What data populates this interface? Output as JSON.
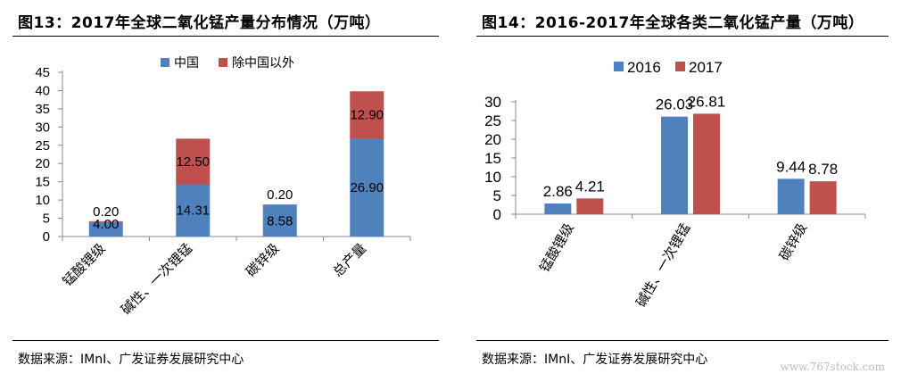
{
  "left": {
    "title": "图13：2017年全球二氧化锰产量分布情况（万吨）",
    "source": "数据来源：IMnI、广发证券发展研究中心"
  },
  "right": {
    "title": "图14：2016-2017年全球各类二氧化锰产量（万吨）",
    "source": "数据来源：IMnI、广发证券发展研究中心"
  },
  "watermark": "www.767stock.com",
  "chart_data": [
    {
      "type": "bar",
      "stacked": true,
      "title": "2017年全球二氧化锰产量分布情况（万吨）",
      "categories": [
        "锰酸锂级",
        "碱性、一次锂锰",
        "碳锌级",
        "总产量"
      ],
      "series": [
        {
          "name": "中国",
          "color": "#4f81bd",
          "values": [
            4.0,
            14.31,
            8.58,
            26.9
          ],
          "labels": [
            "4.00",
            "14.31",
            "8.58",
            "26.90"
          ]
        },
        {
          "name": "除中国以外",
          "color": "#c0504d",
          "values": [
            0.2,
            12.5,
            0.2,
            12.9
          ],
          "labels": [
            "0.20",
            "12.50",
            "0.20",
            "12.90"
          ]
        }
      ],
      "ylim": [
        0,
        45
      ],
      "yticks": [
        0,
        5,
        10,
        15,
        20,
        25,
        30,
        35,
        40,
        45
      ],
      "grid": false,
      "legend": "top"
    },
    {
      "type": "bar",
      "stacked": false,
      "title": "2016-2017年全球各类二氧化锰产量（万吨）",
      "categories": [
        "锰酸锂级",
        "碱性、一次锂锰",
        "碳锌级"
      ],
      "series": [
        {
          "name": "2016",
          "color": "#4f81bd",
          "values": [
            2.86,
            26.03,
            9.44
          ],
          "labels": [
            "2.86",
            "26.03",
            "9.44"
          ]
        },
        {
          "name": "2017",
          "color": "#c0504d",
          "values": [
            4.21,
            26.81,
            8.78
          ],
          "labels": [
            "4.21",
            "26.81",
            "8.78"
          ]
        }
      ],
      "ylim": [
        0,
        30
      ],
      "yticks": [
        0,
        5,
        10,
        15,
        20,
        25,
        30
      ],
      "grid": false,
      "legend": "top-left"
    }
  ]
}
